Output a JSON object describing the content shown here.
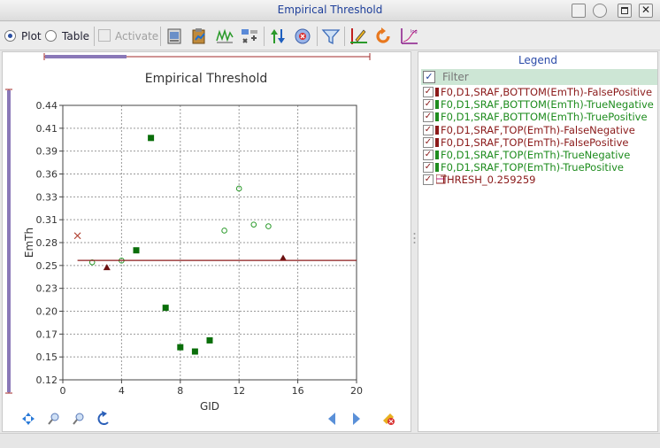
{
  "window": {
    "title": "Empirical Threshold"
  },
  "toolbar": {
    "plot_label": "Plot",
    "table_label": "Table",
    "activate_label": "Activate",
    "view_mode": "Plot"
  },
  "legend": {
    "title": "Legend",
    "filter_placeholder": "Filter",
    "items": [
      {
        "label": "F0,D1,SRAF,BOTTOM(EmTh)-FalsePositive",
        "color": "#8b1a1a"
      },
      {
        "label": "F0,D1,SRAF,BOTTOM(EmTh)-TrueNegative",
        "color": "#1e8c1e"
      },
      {
        "label": "F0,D1,SRAF,BOTTOM(EmTh)-TruePositive",
        "color": "#1e8c1e"
      },
      {
        "label": "F0,D1,SRAF,TOP(EmTh)-FalseNegative",
        "color": "#8b1a1a"
      },
      {
        "label": "F0,D1,SRAF,TOP(EmTh)-FalsePositive",
        "color": "#8b1a1a"
      },
      {
        "label": "F0,D1,SRAF,TOP(EmTh)-TrueNegative",
        "color": "#1e8c1e"
      },
      {
        "label": "F0,D1,SRAF,TOP(EmTh)-TruePositive",
        "color": "#1e8c1e"
      },
      {
        "label": "THRESH_0.259259",
        "color": "#8b1a1a"
      }
    ]
  },
  "chart_data": {
    "type": "scatter",
    "title": "Empirical Threshold",
    "xlabel": "GID",
    "ylabel": "EmTh",
    "xlim": [
      0,
      20
    ],
    "ylim": [
      0.12,
      0.44
    ],
    "xticks": [
      "0",
      "4",
      "8",
      "12",
      "16",
      "20"
    ],
    "yticks": [
      "0.12",
      "0.15",
      "0.17",
      "0.20",
      "0.23",
      "0.25",
      "0.28",
      "0.31",
      "0.33",
      "0.36",
      "0.39",
      "0.41",
      "0.44"
    ],
    "grid": true,
    "series": [
      {
        "name": "F0,D1,SRAF,BOTTOM(EmTh)-FalsePositive",
        "marker": "x",
        "color": "#b04030",
        "points": [
          [
            1,
            0.288
          ]
        ]
      },
      {
        "name": "F0,D1,SRAF,BOTTOM(EmTh)-TrueNegative",
        "marker": "circle-open",
        "color": "#2a9a2a",
        "points": [
          [
            2,
            0.257
          ],
          [
            4,
            0.259
          ]
        ]
      },
      {
        "name": "F0,D1,SRAF,BOTTOM(EmTh)-TruePositive",
        "marker": "square",
        "color": "#0a6e0a",
        "points": [
          [
            5,
            0.271
          ],
          [
            6,
            0.402
          ],
          [
            7,
            0.204
          ],
          [
            8,
            0.158
          ],
          [
            9,
            0.153
          ],
          [
            10,
            0.166
          ]
        ]
      },
      {
        "name": "F0,D1,SRAF,TOP(EmTh)-FalseNegative",
        "marker": "triangle",
        "color": "#6b1010",
        "points": [
          [
            3,
            0.251
          ],
          [
            15,
            0.262
          ]
        ]
      },
      {
        "name": "F0,D1,SRAF,TOP(EmTh)-TrueNegative",
        "marker": "circle-open",
        "color": "#2a9a2a",
        "points": [
          [
            11,
            0.294
          ],
          [
            12,
            0.343
          ],
          [
            13,
            0.301
          ],
          [
            14,
            0.299
          ]
        ]
      },
      {
        "name": "THRESH_0.259259",
        "marker": "line",
        "color": "#8b1a1a",
        "y": 0.259259,
        "x_range": [
          1,
          20
        ]
      }
    ]
  }
}
